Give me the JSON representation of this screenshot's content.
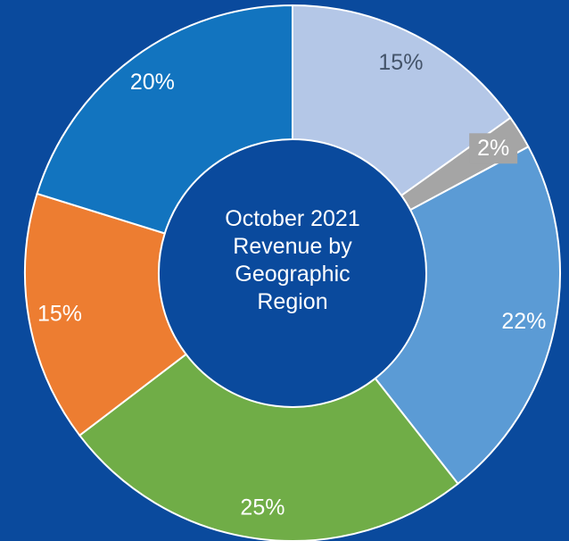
{
  "chart_data": {
    "type": "donut",
    "title": "October 2021 Revenue by Geographic Region",
    "values": [
      15,
      2,
      22,
      25,
      15,
      20
    ],
    "value_labels": [
      "15%",
      "2%",
      "22%",
      "25%",
      "15%",
      "20%"
    ],
    "colors": [
      "#b4c7e7",
      "#a5a5a5",
      "#5b9bd5",
      "#70ad47",
      "#ed7d31",
      "#1274bf"
    ]
  }
}
